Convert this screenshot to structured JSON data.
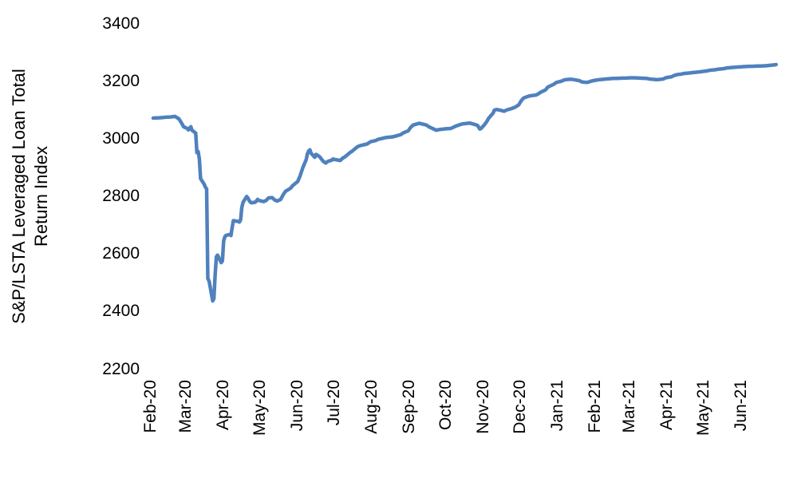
{
  "chart_data": {
    "type": "line",
    "title": "",
    "ylabel": "S&P/LSTA Leveraged Loan Total Return Index",
    "ylabel_lines": [
      "S&P/LSTA Leveraged Loan Total",
      "Return Index"
    ],
    "xlabel": "",
    "legend": null,
    "grid": false,
    "axes_lines_visible": false,
    "background_color": "#ffffff",
    "text_color": "#000000",
    "line_color": "#4F81BD",
    "line_width": 4.5,
    "ylim": [
      2200,
      3400
    ],
    "y_ticks": [
      2200,
      2400,
      2600,
      2800,
      3000,
      3200,
      3400
    ],
    "x_tick_labels": [
      "Feb-20",
      "Mar-20",
      "Apr-20",
      "May-20",
      "Jun-20",
      "Jul-20",
      "Aug-20",
      "Sep-20",
      "Oct-20",
      "Nov-20",
      "Dec-20",
      "Jan-21",
      "Feb-21",
      "Mar-21",
      "Apr-21",
      "May-21",
      "Jun-21"
    ],
    "x_range": [
      "2020-02-01",
      "2021-06-30"
    ],
    "series": [
      {
        "name": "S&P/LSTA Leveraged Loan Total Return Index",
        "points": [
          [
            "2020-02-03",
            3072
          ],
          [
            "2020-02-05",
            3073
          ],
          [
            "2020-02-07",
            3073
          ],
          [
            "2020-02-11",
            3074
          ],
          [
            "2020-02-13",
            3075
          ],
          [
            "2020-02-17",
            3076
          ],
          [
            "2020-02-19",
            3077
          ],
          [
            "2020-02-21",
            3078
          ],
          [
            "2020-02-24",
            3070
          ],
          [
            "2020-02-25",
            3064
          ],
          [
            "2020-02-26",
            3057
          ],
          [
            "2020-02-27",
            3050
          ],
          [
            "2020-02-28",
            3042
          ],
          [
            "2020-03-02",
            3036
          ],
          [
            "2020-03-03",
            3031
          ],
          [
            "2020-03-04",
            3038
          ],
          [
            "2020-03-05",
            3042
          ],
          [
            "2020-03-06",
            3030
          ],
          [
            "2020-03-09",
            3020
          ],
          [
            "2020-03-10",
            2952
          ],
          [
            "2020-03-11",
            2956
          ],
          [
            "2020-03-12",
            2930
          ],
          [
            "2020-03-13",
            2862
          ],
          [
            "2020-03-16",
            2842
          ],
          [
            "2020-03-17",
            2832
          ],
          [
            "2020-03-18",
            2826
          ],
          [
            "2020-03-19",
            2515
          ],
          [
            "2020-03-20",
            2506
          ],
          [
            "2020-03-23",
            2437
          ],
          [
            "2020-03-24",
            2445
          ],
          [
            "2020-03-25",
            2530
          ],
          [
            "2020-03-26",
            2590
          ],
          [
            "2020-03-27",
            2596
          ],
          [
            "2020-03-30",
            2570
          ],
          [
            "2020-03-31",
            2576
          ],
          [
            "2020-04-01",
            2645
          ],
          [
            "2020-04-02",
            2660
          ],
          [
            "2020-04-03",
            2665
          ],
          [
            "2020-04-06",
            2668
          ],
          [
            "2020-04-07",
            2664
          ],
          [
            "2020-04-08",
            2692
          ],
          [
            "2020-04-09",
            2716
          ],
          [
            "2020-04-13",
            2713
          ],
          [
            "2020-04-14",
            2711
          ],
          [
            "2020-04-15",
            2719
          ],
          [
            "2020-04-16",
            2762
          ],
          [
            "2020-04-17",
            2780
          ],
          [
            "2020-04-20",
            2800
          ],
          [
            "2020-04-21",
            2794
          ],
          [
            "2020-04-22",
            2786
          ],
          [
            "2020-04-23",
            2780
          ],
          [
            "2020-04-24",
            2778
          ],
          [
            "2020-04-27",
            2780
          ],
          [
            "2020-04-28",
            2784
          ],
          [
            "2020-04-29",
            2790
          ],
          [
            "2020-04-30",
            2786
          ],
          [
            "2020-05-04",
            2782
          ],
          [
            "2020-05-06",
            2786
          ],
          [
            "2020-05-08",
            2795
          ],
          [
            "2020-05-11",
            2796
          ],
          [
            "2020-05-13",
            2788
          ],
          [
            "2020-05-15",
            2784
          ],
          [
            "2020-05-18",
            2790
          ],
          [
            "2020-05-20",
            2806
          ],
          [
            "2020-05-22",
            2818
          ],
          [
            "2020-05-26",
            2828
          ],
          [
            "2020-05-28",
            2838
          ],
          [
            "2020-06-01",
            2852
          ],
          [
            "2020-06-03",
            2872
          ],
          [
            "2020-06-05",
            2898
          ],
          [
            "2020-06-08",
            2928
          ],
          [
            "2020-06-09",
            2948
          ],
          [
            "2020-06-10",
            2958
          ],
          [
            "2020-06-11",
            2962
          ],
          [
            "2020-06-12",
            2950
          ],
          [
            "2020-06-15",
            2936
          ],
          [
            "2020-06-16",
            2946
          ],
          [
            "2020-06-17",
            2944
          ],
          [
            "2020-06-19",
            2938
          ],
          [
            "2020-06-22",
            2922
          ],
          [
            "2020-06-24",
            2916
          ],
          [
            "2020-06-26",
            2922
          ],
          [
            "2020-06-29",
            2926
          ],
          [
            "2020-06-30",
            2930
          ],
          [
            "2020-07-02",
            2928
          ],
          [
            "2020-07-06",
            2925
          ],
          [
            "2020-07-08",
            2933
          ],
          [
            "2020-07-10",
            2938
          ],
          [
            "2020-07-14",
            2952
          ],
          [
            "2020-07-16",
            2958
          ],
          [
            "2020-07-20",
            2972
          ],
          [
            "2020-07-22",
            2976
          ],
          [
            "2020-07-24",
            2978
          ],
          [
            "2020-07-28",
            2982
          ],
          [
            "2020-07-31",
            2990
          ],
          [
            "2020-08-04",
            2994
          ],
          [
            "2020-08-06",
            2998
          ],
          [
            "2020-08-11",
            3003
          ],
          [
            "2020-08-13",
            3005
          ],
          [
            "2020-08-18",
            3007
          ],
          [
            "2020-08-20",
            3009
          ],
          [
            "2020-08-25",
            3015
          ],
          [
            "2020-08-27",
            3021
          ],
          [
            "2020-08-31",
            3028
          ],
          [
            "2020-09-02",
            3040
          ],
          [
            "2020-09-04",
            3048
          ],
          [
            "2020-09-09",
            3054
          ],
          [
            "2020-09-11",
            3052
          ],
          [
            "2020-09-15",
            3048
          ],
          [
            "2020-09-17",
            3042
          ],
          [
            "2020-09-21",
            3034
          ],
          [
            "2020-09-23",
            3030
          ],
          [
            "2020-09-25",
            3032
          ],
          [
            "2020-09-29",
            3034
          ],
          [
            "2020-10-01",
            3035
          ],
          [
            "2020-10-05",
            3036
          ],
          [
            "2020-10-07",
            3040
          ],
          [
            "2020-10-09",
            3044
          ],
          [
            "2020-10-13",
            3050
          ],
          [
            "2020-10-15",
            3052
          ],
          [
            "2020-10-19",
            3054
          ],
          [
            "2020-10-21",
            3055
          ],
          [
            "2020-10-23",
            3052
          ],
          [
            "2020-10-27",
            3047
          ],
          [
            "2020-10-29",
            3034
          ],
          [
            "2020-10-30",
            3036
          ],
          [
            "2020-11-02",
            3050
          ],
          [
            "2020-11-04",
            3062
          ],
          [
            "2020-11-05",
            3070
          ],
          [
            "2020-11-09",
            3090
          ],
          [
            "2020-11-10",
            3100
          ],
          [
            "2020-11-12",
            3102
          ],
          [
            "2020-11-16",
            3098
          ],
          [
            "2020-11-18",
            3096
          ],
          [
            "2020-11-20",
            3100
          ],
          [
            "2020-11-24",
            3105
          ],
          [
            "2020-11-27",
            3110
          ],
          [
            "2020-11-30",
            3118
          ],
          [
            "2020-12-02",
            3132
          ],
          [
            "2020-12-04",
            3142
          ],
          [
            "2020-12-08",
            3148
          ],
          [
            "2020-12-10",
            3150
          ],
          [
            "2020-12-14",
            3152
          ],
          [
            "2020-12-16",
            3156
          ],
          [
            "2020-12-18",
            3162
          ],
          [
            "2020-12-22",
            3170
          ],
          [
            "2020-12-24",
            3180
          ],
          [
            "2020-12-29",
            3190
          ],
          [
            "2020-12-31",
            3196
          ],
          [
            "2021-01-04",
            3200
          ],
          [
            "2021-01-06",
            3204
          ],
          [
            "2021-01-08",
            3206
          ],
          [
            "2021-01-12",
            3207
          ],
          [
            "2021-01-14",
            3206
          ],
          [
            "2021-01-19",
            3202
          ],
          [
            "2021-01-21",
            3198
          ],
          [
            "2021-01-25",
            3196
          ],
          [
            "2021-01-27",
            3198
          ],
          [
            "2021-01-29",
            3201
          ],
          [
            "2021-02-02",
            3204
          ],
          [
            "2021-02-05",
            3206
          ],
          [
            "2021-02-10",
            3208
          ],
          [
            "2021-02-16",
            3210
          ],
          [
            "2021-02-19",
            3210
          ],
          [
            "2021-02-23",
            3211
          ],
          [
            "2021-02-26",
            3211
          ],
          [
            "2021-03-02",
            3212
          ],
          [
            "2021-03-05",
            3212
          ],
          [
            "2021-03-10",
            3211
          ],
          [
            "2021-03-15",
            3210
          ],
          [
            "2021-03-18",
            3208
          ],
          [
            "2021-03-23",
            3206
          ],
          [
            "2021-03-25",
            3206
          ],
          [
            "2021-03-29",
            3208
          ],
          [
            "2021-03-31",
            3212
          ],
          [
            "2021-04-05",
            3216
          ],
          [
            "2021-04-07",
            3220
          ],
          [
            "2021-04-09",
            3223
          ],
          [
            "2021-04-13",
            3225
          ],
          [
            "2021-04-15",
            3227
          ],
          [
            "2021-04-20",
            3229
          ],
          [
            "2021-04-22",
            3230
          ],
          [
            "2021-04-27",
            3232
          ],
          [
            "2021-04-30",
            3234
          ],
          [
            "2021-05-04",
            3236
          ],
          [
            "2021-05-06",
            3238
          ],
          [
            "2021-05-11",
            3240
          ],
          [
            "2021-05-13",
            3242
          ],
          [
            "2021-05-18",
            3244
          ],
          [
            "2021-05-20",
            3246
          ],
          [
            "2021-05-25",
            3248
          ],
          [
            "2021-05-27",
            3249
          ],
          [
            "2021-06-01",
            3250
          ],
          [
            "2021-06-03",
            3251
          ],
          [
            "2021-06-08",
            3252
          ],
          [
            "2021-06-10",
            3252
          ],
          [
            "2021-06-15",
            3253
          ],
          [
            "2021-06-17",
            3253
          ],
          [
            "2021-06-22",
            3254
          ],
          [
            "2021-06-24",
            3255
          ],
          [
            "2021-06-29",
            3257
          ],
          [
            "2021-06-30",
            3258
          ]
        ]
      }
    ]
  }
}
